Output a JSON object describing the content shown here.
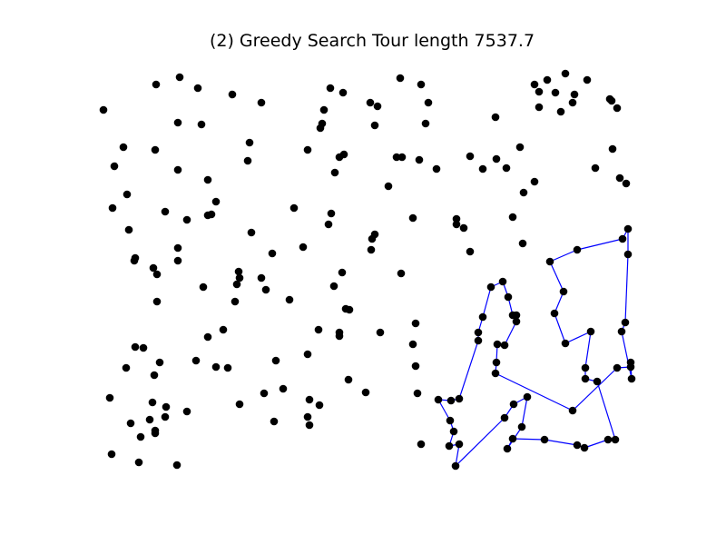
{
  "chart_data": {
    "type": "scatter",
    "title": "(2)  Greedy Search  Tour length 7537.7",
    "xlabel": "",
    "ylabel": "",
    "grid": false,
    "axes_visible": false,
    "point_color": "#000000",
    "tour_color": "#0000ff",
    "cities": [
      [
        114,
        121
      ],
      [
        172,
        93
      ],
      [
        198,
        85
      ],
      [
        218,
        97
      ],
      [
        256,
        104
      ],
      [
        288,
        113
      ],
      [
        364,
        97
      ],
      [
        378,
        102
      ],
      [
        408,
        113
      ],
      [
        416,
        117
      ],
      [
        441,
        86
      ],
      [
        464,
        93
      ],
      [
        472,
        113
      ],
      [
        546,
        129
      ],
      [
        589,
        93
      ],
      [
        603,
        88
      ],
      [
        623,
        81
      ],
      [
        647,
        88
      ],
      [
        594,
        101
      ],
      [
        612,
        102
      ],
      [
        633,
        104
      ],
      [
        672,
        109
      ],
      [
        674,
        111
      ],
      [
        680,
        119
      ],
      [
        594,
        118
      ],
      [
        618,
        123
      ],
      [
        631,
        113
      ],
      [
        136,
        162
      ],
      [
        171,
        165
      ],
      [
        126,
        183
      ],
      [
        196,
        135
      ],
      [
        222,
        137
      ],
      [
        357,
        121
      ],
      [
        355,
        136
      ],
      [
        353,
        141
      ],
      [
        413,
        138
      ],
      [
        469,
        136
      ],
      [
        275,
        157
      ],
      [
        273,
        177
      ],
      [
        339,
        165
      ],
      [
        379,
        170
      ],
      [
        374,
        173
      ],
      [
        369,
        190
      ],
      [
        437,
        173
      ],
      [
        443,
        173
      ],
      [
        462,
        176
      ],
      [
        481,
        186
      ],
      [
        518,
        172
      ],
      [
        532,
        186
      ],
      [
        547,
        175
      ],
      [
        558,
        185
      ],
      [
        573,
        162
      ],
      [
        675,
        164
      ],
      [
        656,
        185
      ],
      [
        683,
        196
      ],
      [
        690,
        202
      ],
      [
        140,
        214
      ],
      [
        124,
        229
      ],
      [
        196,
        187
      ],
      [
        229,
        198
      ],
      [
        238,
        222
      ],
      [
        233,
        236
      ],
      [
        229,
        237
      ],
      [
        182,
        233
      ],
      [
        206,
        242
      ],
      [
        142,
        253
      ],
      [
        324,
        229
      ],
      [
        365,
        235
      ],
      [
        362,
        247
      ],
      [
        428,
        205
      ],
      [
        413,
        258
      ],
      [
        410,
        263
      ],
      [
        409,
        275
      ],
      [
        455,
        240
      ],
      [
        503,
        241
      ],
      [
        503,
        247
      ],
      [
        511,
        251
      ],
      [
        565,
        239
      ],
      [
        577,
        212
      ],
      [
        589,
        200
      ],
      [
        576,
        268
      ],
      [
        518,
        277
      ],
      [
        149,
        284
      ],
      [
        148,
        287
      ],
      [
        169,
        295
      ],
      [
        173,
        302
      ],
      [
        196,
        273
      ],
      [
        196,
        287
      ],
      [
        277,
        256
      ],
      [
        300,
        279
      ],
      [
        334,
        272
      ],
      [
        263,
        299
      ],
      [
        264,
        306
      ],
      [
        261,
        313
      ],
      [
        288,
        306
      ],
      [
        293,
        319
      ],
      [
        224,
        316
      ],
      [
        173,
        332
      ],
      [
        259,
        332
      ],
      [
        319,
        330
      ],
      [
        377,
        300
      ],
      [
        368,
        315
      ],
      [
        381,
        340
      ],
      [
        385,
        341
      ],
      [
        442,
        301
      ],
      [
        246,
        363
      ],
      [
        229,
        371
      ],
      [
        149,
        382
      ],
      [
        158,
        383
      ],
      [
        176,
        399
      ],
      [
        139,
        405
      ],
      [
        170,
        413
      ],
      [
        216,
        397
      ],
      [
        238,
        404
      ],
      [
        251,
        405
      ],
      [
        304,
        397
      ],
      [
        339,
        390
      ],
      [
        351,
        363
      ],
      [
        374,
        366
      ],
      [
        374,
        370
      ],
      [
        419,
        366
      ],
      [
        458,
        356
      ],
      [
        455,
        379
      ],
      [
        458,
        403
      ],
      [
        121,
        438
      ],
      [
        168,
        443
      ],
      [
        183,
        448
      ],
      [
        182,
        459
      ],
      [
        165,
        462
      ],
      [
        144,
        466
      ],
      [
        171,
        474
      ],
      [
        171,
        477
      ],
      [
        155,
        481
      ],
      [
        206,
        453
      ],
      [
        264,
        445
      ],
      [
        291,
        433
      ],
      [
        312,
        428
      ],
      [
        341,
        440
      ],
      [
        352,
        446
      ],
      [
        339,
        459
      ],
      [
        341,
        468
      ],
      [
        302,
        464
      ],
      [
        384,
        418
      ],
      [
        403,
        432
      ],
      [
        460,
        433
      ],
      [
        464,
        489
      ],
      [
        123,
        500
      ],
      [
        153,
        509
      ],
      [
        195,
        512
      ]
    ],
    "tour": [
      [
        692,
        252
      ],
      [
        686,
        263
      ],
      [
        636,
        275
      ],
      [
        606,
        288
      ],
      [
        621,
        321
      ],
      [
        611,
        345
      ],
      [
        623,
        378
      ],
      [
        651,
        365
      ],
      [
        645,
        405
      ],
      [
        645,
        417
      ],
      [
        658,
        420
      ],
      [
        678,
        484
      ],
      [
        670,
        484
      ],
      [
        644,
        493
      ],
      [
        636,
        490
      ],
      [
        600,
        484
      ],
      [
        565,
        483
      ],
      [
        559,
        494
      ],
      [
        575,
        470
      ],
      [
        581,
        437
      ],
      [
        566,
        445
      ],
      [
        556,
        460
      ],
      [
        502,
        513
      ],
      [
        506,
        489
      ],
      [
        495,
        491
      ],
      [
        500,
        475
      ],
      [
        496,
        463
      ],
      [
        483,
        440
      ],
      [
        497,
        441
      ],
      [
        506,
        439
      ],
      [
        527,
        375
      ],
      [
        527,
        366
      ],
      [
        532,
        349
      ],
      [
        541,
        316
      ],
      [
        554,
        310
      ],
      [
        560,
        327
      ],
      [
        565,
        347
      ],
      [
        569,
        347
      ],
      [
        569,
        354
      ],
      [
        556,
        380
      ],
      [
        548,
        379
      ],
      [
        547,
        399
      ],
      [
        546,
        411
      ],
      [
        631,
        452
      ],
      [
        680,
        405
      ],
      [
        695,
        404
      ],
      [
        695,
        399
      ],
      [
        696,
        417
      ],
      [
        685,
        365
      ],
      [
        689,
        355
      ],
      [
        692,
        280
      ],
      [
        692,
        252
      ]
    ]
  }
}
